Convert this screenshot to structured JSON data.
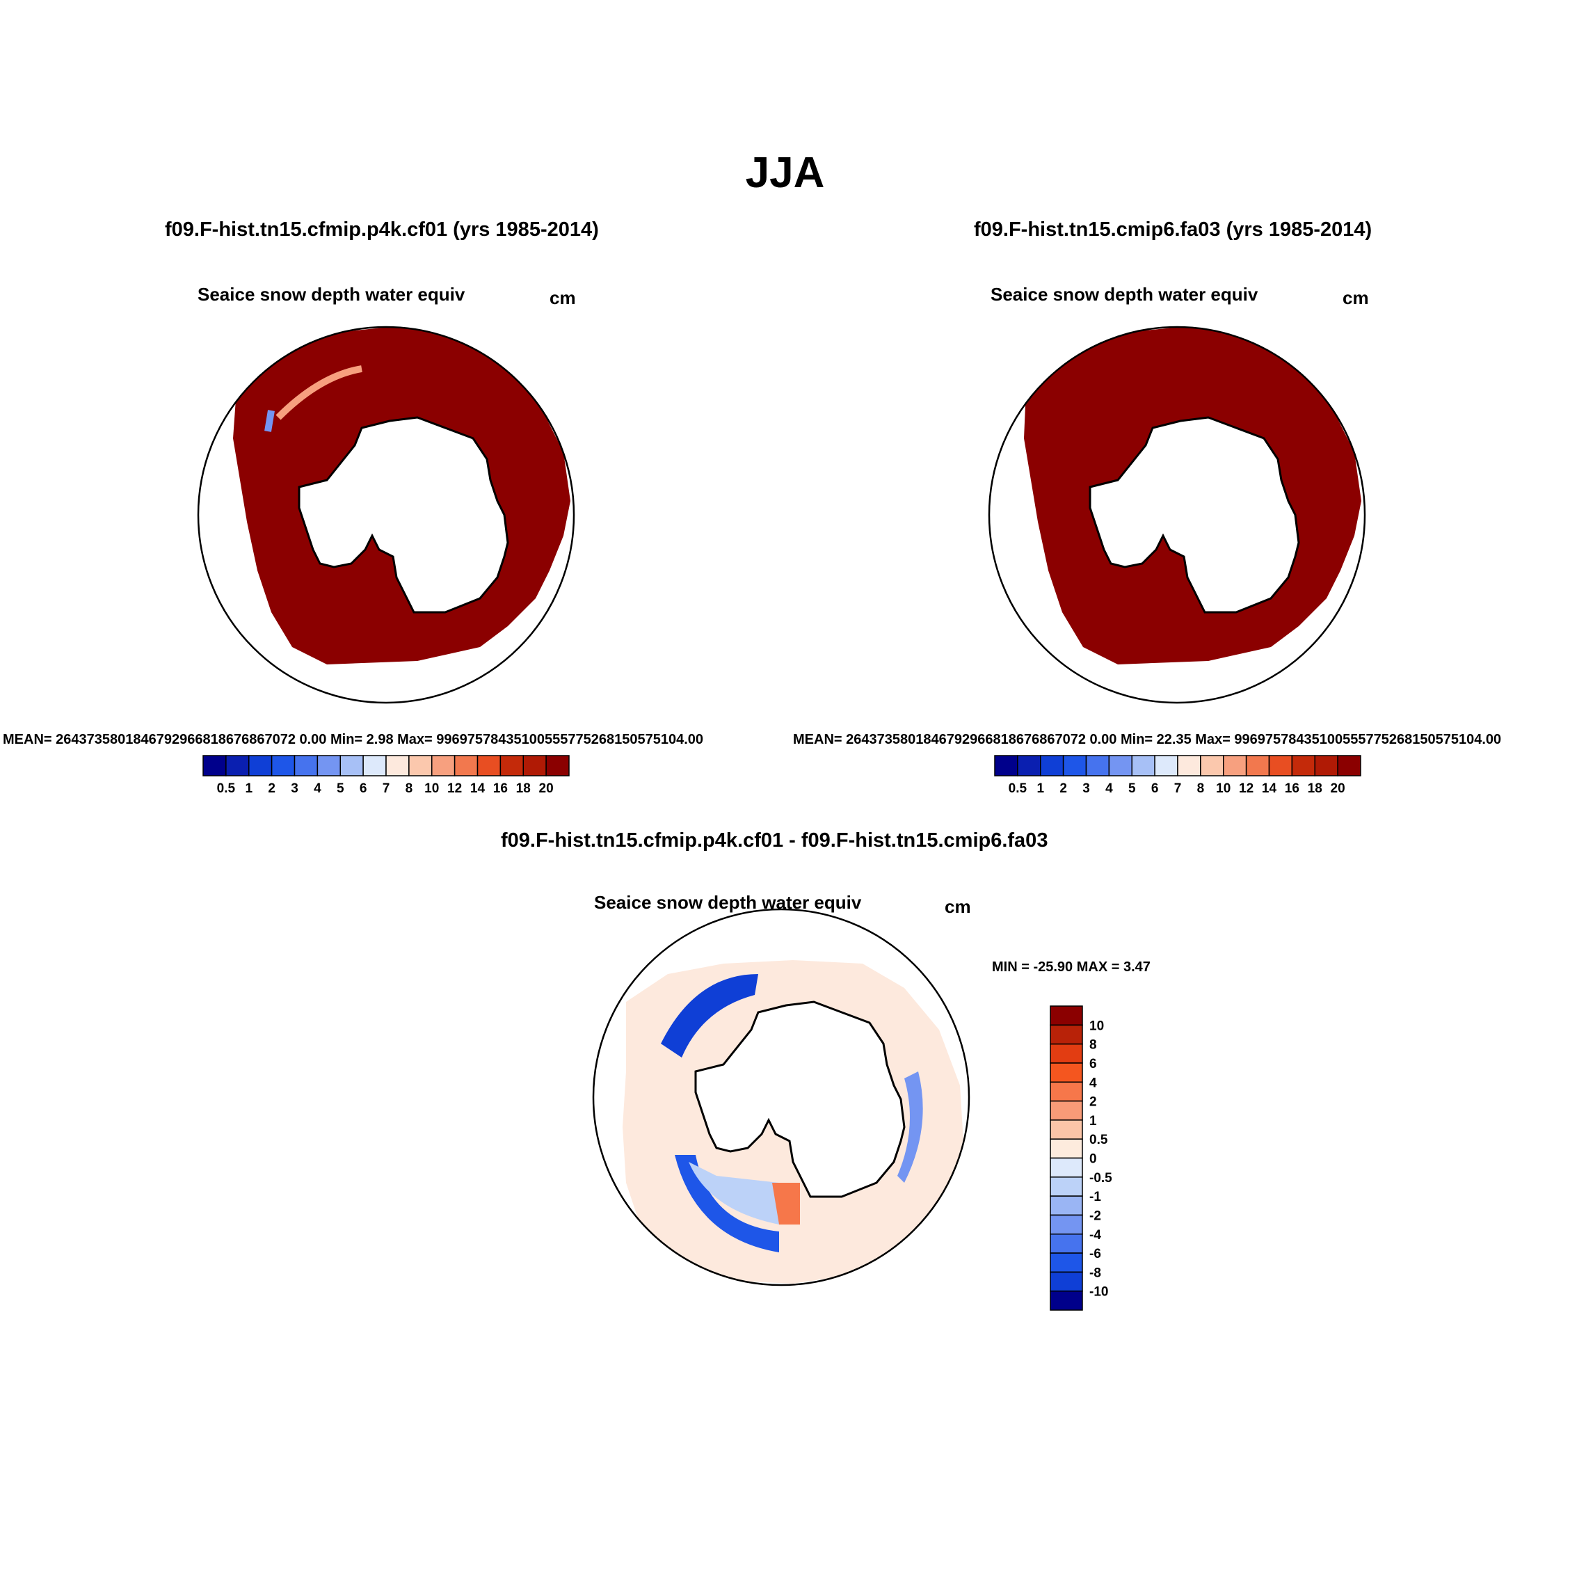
{
  "figure": {
    "season": "JJA"
  },
  "panels": {
    "left": {
      "case_title": "f09.F-hist.tn15.cfmip.p4k.cf01 (yrs 1985-2014)",
      "variable": "Seaice snow depth water equiv",
      "units": "cm",
      "stats": "MEAN= 2643735801846792966818676867072 0.00  Min=   2.98  Max= 99697578435100555775268150575104.00"
    },
    "right": {
      "case_title": "f09.F-hist.tn15.cmip6.fa03 (yrs 1985-2014)",
      "variable": "Seaice snow depth water equiv",
      "units": "cm",
      "stats": "MEAN= 2643735801846792966818676867072 0.00  Min=   22.35  Max= 99697578435100555775268150575104.00"
    },
    "diff": {
      "case_title": "f09.F-hist.tn15.cfmip.p4k.cf01 - f09.F-hist.tn15.cmip6.fa03",
      "variable": "Seaice snow depth water equiv",
      "units": "cm",
      "minmax": "MIN = -25.90 MAX =   3.47"
    }
  },
  "colorbars": {
    "absolute": {
      "labels": [
        "0.5",
        "1",
        "2",
        "3",
        "4",
        "5",
        "6",
        "7",
        "8",
        "10",
        "12",
        "14",
        "16",
        "18",
        "20"
      ],
      "colors": [
        "#00008b",
        "#0a1fb0",
        "#0f3fd6",
        "#1e56e8",
        "#4673ee",
        "#7495f2",
        "#a7c0f6",
        "#dde9fb",
        "#fde9dd",
        "#fbc8ad",
        "#f7a07f",
        "#f2784e",
        "#e84e22",
        "#c42a0a",
        "#b01a05",
        "#8b0000"
      ]
    },
    "difference": {
      "labels": [
        "10",
        "8",
        "6",
        "4",
        "2",
        "1",
        "0.5",
        "0",
        "-0.5",
        "-1",
        "-2",
        "-4",
        "-6",
        "-8",
        "-10"
      ],
      "colors": [
        "#8b0000",
        "#b82208",
        "#e23d12",
        "#f4561f",
        "#f6774a",
        "#f89b78",
        "#fbc5a8",
        "#fdebdd",
        "#dde9fb",
        "#bcd2f8",
        "#9ab5f4",
        "#7495f2",
        "#4673ee",
        "#1e56e8",
        "#0f3fd6",
        "#00008b"
      ]
    }
  }
}
